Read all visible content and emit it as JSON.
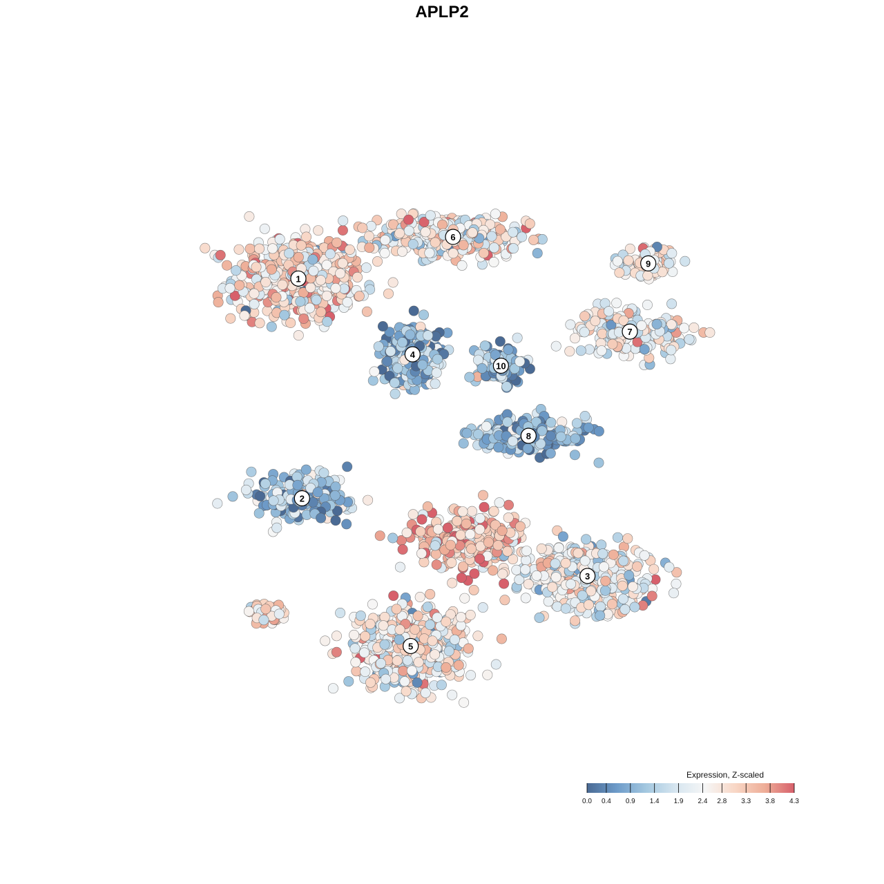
{
  "chart_data": {
    "type": "scatter",
    "title": "APLP2",
    "xlabel": "",
    "ylabel": "",
    "grid": false,
    "legend": {
      "title": "Expression, Z-scaled",
      "placement": "bottom-right",
      "ticks": [
        "0.0",
        "0.4",
        "0.9",
        "1.4",
        "1.9",
        "2.4",
        "2.8",
        "3.3",
        "3.8",
        "4.3"
      ],
      "min": 0.0,
      "max": 4.3,
      "colors": [
        "#4a6a94",
        "#6d9bc9",
        "#a4c8e0",
        "#d7e6f0",
        "#f6f6f6",
        "#f8d7c6",
        "#eeae98",
        "#d7606b"
      ]
    },
    "clusters": [
      {
        "label": "1",
        "x": -7.8,
        "y": 6.4,
        "spread": [
          4.2,
          2.6
        ],
        "mean_expr": 2.8,
        "n": 520
      },
      {
        "label": "6",
        "x": 0.6,
        "y": 8.6,
        "spread": [
          4.8,
          1.3
        ],
        "mean_expr": 2.6,
        "n": 380
      },
      {
        "label": "9",
        "x": 11.2,
        "y": 7.2,
        "spread": [
          1.9,
          1.0
        ],
        "mean_expr": 2.5,
        "n": 95
      },
      {
        "label": "7",
        "x": 10.2,
        "y": 3.6,
        "spread": [
          3.6,
          1.4
        ],
        "mean_expr": 2.4,
        "n": 190
      },
      {
        "label": "4",
        "x": -1.6,
        "y": 2.4,
        "spread": [
          1.9,
          1.9
        ],
        "mean_expr": 1.0,
        "n": 320
      },
      {
        "label": "10",
        "x": 3.2,
        "y": 1.8,
        "spread": [
          1.6,
          1.2
        ],
        "mean_expr": 0.9,
        "n": 120
      },
      {
        "label": "8",
        "x": 4.7,
        "y": -1.9,
        "spread": [
          3.8,
          1.1
        ],
        "mean_expr": 1.0,
        "n": 210
      },
      {
        "label": "2",
        "x": -7.6,
        "y": -5.2,
        "spread": [
          3.2,
          1.4
        ],
        "mean_expr": 1.2,
        "n": 190
      },
      {
        "label": "3",
        "x": 7.9,
        "y": -9.3,
        "spread": [
          4.4,
          1.9
        ],
        "mean_expr": 2.3,
        "n": 430
      },
      {
        "label": "5",
        "x": -1.7,
        "y": -13.0,
        "spread": [
          3.6,
          2.6
        ],
        "mean_expr": 2.6,
        "n": 520
      },
      {
        "label": "",
        "x": 1.2,
        "y": -7.4,
        "spread": [
          3.4,
          1.7
        ],
        "mean_expr": 3.3,
        "n": 300
      },
      {
        "label": "",
        "x": -9.6,
        "y": -11.2,
        "spread": [
          1.7,
          0.6
        ],
        "mean_expr": 2.9,
        "n": 45
      }
    ],
    "xlim": [
      -18,
      18
    ],
    "ylim": [
      -19,
      16
    ]
  }
}
